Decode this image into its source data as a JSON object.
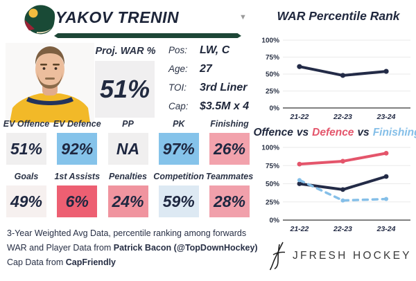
{
  "player_card": {
    "team_logo_icon": "minnesota-wild-logo",
    "name": "YAKOV TRENIN",
    "dropdown_icon": "chevron-down-icon",
    "accent_bar_color": "#1d4636",
    "photo": "player-headshot-yellow-jersey",
    "proj_war": {
      "label": "Proj. WAR %",
      "value": "51%"
    },
    "info": [
      {
        "label": "Pos:",
        "value": "LW, C"
      },
      {
        "label": "Age:",
        "value": "27"
      },
      {
        "label": "TOI:",
        "value": "3rd Liner"
      },
      {
        "label": "Cap:",
        "value": "$3.5M x 4"
      }
    ],
    "stats_row1": [
      {
        "label": "EV Offence",
        "value": "51%",
        "bg": "#f0efef"
      },
      {
        "label": "EV Defence",
        "value": "92%",
        "bg": "#85c3ea"
      },
      {
        "label": "PP",
        "value": "NA",
        "bg": "#f0efef"
      },
      {
        "label": "PK",
        "value": "97%",
        "bg": "#85c3ea"
      },
      {
        "label": "Finishing",
        "value": "26%",
        "bg": "#f2a2ac"
      }
    ],
    "stats_row2": [
      {
        "label": "Goals",
        "value": "49%",
        "bg": "#f6f0ef"
      },
      {
        "label": "1st Assists",
        "value": "6%",
        "bg": "#ed5f72"
      },
      {
        "label": "Penalties",
        "value": "24%",
        "bg": "#f0949f"
      },
      {
        "label": "Competition",
        "value": "59%",
        "bg": "#dde9f3"
      },
      {
        "label": "Teammates",
        "value": "28%",
        "bg": "#f1a0ab"
      }
    ],
    "footnotes": {
      "line1": "3-Year Weighted Avg Data, percentile ranking among forwards",
      "line2_prefix": "WAR and Player Data from ",
      "line2_bold": "Patrick Bacon (@TopDownHockey)",
      "line3_prefix": "Cap Data from ",
      "line3_bold": "CapFriendly"
    }
  },
  "chart_data": [
    {
      "type": "line",
      "title": "WAR Percentile Rank",
      "categories": [
        "21-22",
        "22-23",
        "23-24"
      ],
      "series": [
        {
          "name": "WAR Percentile",
          "color": "#232b47",
          "values": [
            61,
            48,
            54
          ],
          "width": 4,
          "marker_r": 3.6
        }
      ],
      "ylim": [
        0,
        100
      ],
      "yticks": [
        0,
        25,
        50,
        75,
        100
      ],
      "grid": true,
      "legend": "none"
    },
    {
      "type": "line",
      "title_parts": [
        {
          "text": "Offence",
          "color": "#20283e"
        },
        {
          "text": "vs",
          "color": "#20283e"
        },
        {
          "text": "Defence",
          "color": "#e4556b"
        },
        {
          "text": "vs",
          "color": "#20283e"
        },
        {
          "text": "Finishing",
          "color": "#85bfe8"
        }
      ],
      "categories": [
        "21-22",
        "22-23",
        "23-24"
      ],
      "series": [
        {
          "name": "Defence",
          "color": "#e4556b",
          "values": [
            77,
            81,
            92
          ],
          "width": 4,
          "marker_r": 3.4
        },
        {
          "name": "Offence",
          "color": "#232b47",
          "values": [
            50,
            42,
            60
          ],
          "width": 4,
          "marker_r": 3.4
        },
        {
          "name": "Finishing",
          "color": "#85bfe8",
          "values": [
            55,
            27,
            29
          ],
          "width": 3.5,
          "marker_r": 3,
          "dash": "7 7"
        }
      ],
      "ylim": [
        0,
        100
      ],
      "yticks": [
        0,
        25,
        50,
        75,
        100
      ],
      "grid": true,
      "legend": "colored-title-words"
    }
  ],
  "branding": {
    "logo_icon": "jfresh-crossed-sticks-logo",
    "logo_text": "JFRESH HOCKEY"
  }
}
